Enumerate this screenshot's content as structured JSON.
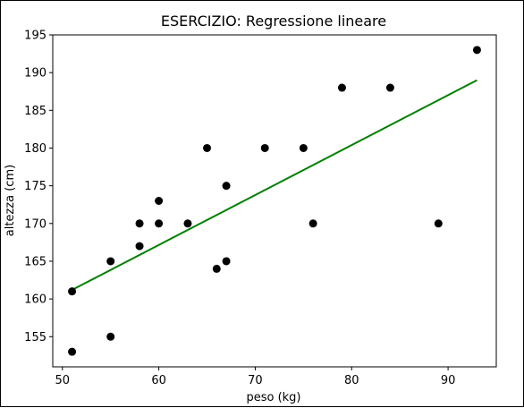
{
  "chart_data": {
    "type": "scatter",
    "title": "ESERCIZIO: Regressione lineare",
    "xlabel": "peso (kg)",
    "ylabel": "altezza (cm)",
    "xlim": [
      49,
      95
    ],
    "ylim": [
      151,
      195
    ],
    "xticks": [
      50,
      60,
      70,
      80,
      90
    ],
    "yticks": [
      155,
      160,
      165,
      170,
      175,
      180,
      185,
      190,
      195
    ],
    "grid": false,
    "points": [
      {
        "x": 51,
        "y": 161
      },
      {
        "x": 51,
        "y": 153
      },
      {
        "x": 55,
        "y": 165
      },
      {
        "x": 55,
        "y": 155
      },
      {
        "x": 58,
        "y": 170
      },
      {
        "x": 58,
        "y": 167
      },
      {
        "x": 60,
        "y": 173
      },
      {
        "x": 60,
        "y": 170
      },
      {
        "x": 63,
        "y": 170
      },
      {
        "x": 65,
        "y": 180
      },
      {
        "x": 66,
        "y": 164
      },
      {
        "x": 67,
        "y": 175
      },
      {
        "x": 67,
        "y": 165
      },
      {
        "x": 71,
        "y": 180
      },
      {
        "x": 75,
        "y": 180
      },
      {
        "x": 76,
        "y": 170
      },
      {
        "x": 79,
        "y": 188
      },
      {
        "x": 84,
        "y": 188
      },
      {
        "x": 89,
        "y": 170
      },
      {
        "x": 93,
        "y": 193
      }
    ],
    "regression_line": {
      "x": [
        51,
        93
      ],
      "y": [
        161.2,
        189.0
      ]
    },
    "colors": {
      "points": "#000000",
      "line": "#008000"
    }
  }
}
